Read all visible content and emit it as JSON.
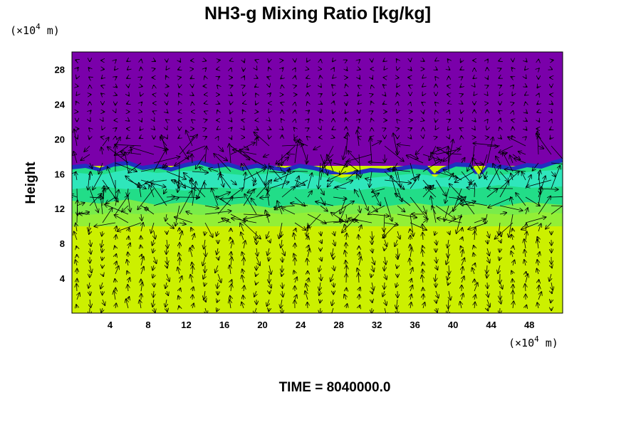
{
  "chart_data": {
    "type": "heatmap",
    "title": "NH3-g Mixing Ratio [kg/kg]",
    "ylabel": "Height",
    "x_unit_prefix": "(×10",
    "x_unit_exp": "4",
    "x_unit_suffix": " m)",
    "y_unit_prefix": "(×10",
    "y_unit_exp": "4",
    "y_unit_suffix": " m)",
    "xlim": [
      0,
      51.5
    ],
    "ylim": [
      0,
      30
    ],
    "x_ticks": [
      "4",
      "8",
      "12",
      "16",
      "20",
      "24",
      "28",
      "32",
      "36",
      "40",
      "44",
      "48"
    ],
    "y_ticks": [
      "4",
      "8",
      "12",
      "16",
      "20",
      "24",
      "28"
    ],
    "footer": "TIME = 8040000.0",
    "colors": {
      "upper": "#7a00aa",
      "interface": "#2030c0",
      "mixed_layer": "#22dd88",
      "lower": "#ccf000"
    },
    "layers": {
      "lower_top_height": 10.0,
      "mixed_layer_top_height": 16.3
    },
    "vectors": "wind velocity field overlay"
  }
}
